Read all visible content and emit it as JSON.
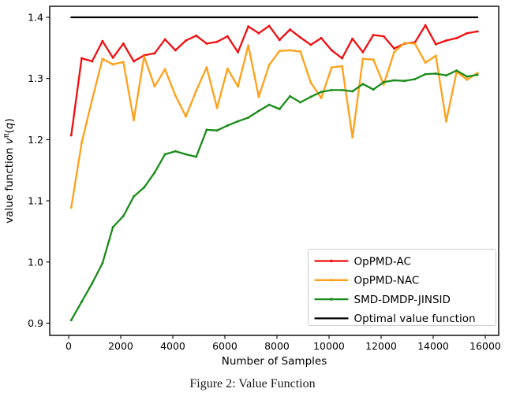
{
  "figure": {
    "caption": "Figure 2: Value Function"
  },
  "chart_data": {
    "type": "line",
    "title": "",
    "xlabel": "Number of Samples",
    "ylabel": {
      "text": "value function vπ(q)",
      "prefix": "value function ",
      "var": "v",
      "sup": "π",
      "open": "(",
      "arg": "q",
      "close": ")"
    },
    "xlim": [
      -727,
      16515
    ],
    "ylim": [
      0.88,
      1.418
    ],
    "x_tick_values": [
      0,
      2000,
      4000,
      6000,
      8000,
      10000,
      12000,
      14000,
      16000
    ],
    "x_tick_labels": [
      "0",
      "2000",
      "4000",
      "6000",
      "8000",
      "10000",
      "12000",
      "14000",
      "16000"
    ],
    "y_tick_values": [
      0.9,
      1.0,
      1.1,
      1.2,
      1.3,
      1.4
    ],
    "y_tick_labels": [
      "0.9",
      "1.0",
      "1.1",
      "1.2",
      "1.3",
      "1.4"
    ],
    "grid": false,
    "legend_position": "lower right",
    "x": [
      100,
      500,
      900,
      1300,
      1700,
      2100,
      2500,
      2900,
      3300,
      3700,
      4100,
      4500,
      4900,
      5300,
      5700,
      6100,
      6500,
      6900,
      7300,
      7700,
      8100,
      8500,
      8900,
      9300,
      9700,
      10100,
      10500,
      10900,
      11300,
      11700,
      12100,
      12500,
      12900,
      13300,
      13700,
      14100,
      14500,
      14900,
      15300,
      15700
    ],
    "series": [
      {
        "name": "OpPMD-AC",
        "color": "#f10e10",
        "marker": true,
        "values": [
          1.207,
          1.333,
          1.328,
          1.361,
          1.334,
          1.357,
          1.328,
          1.338,
          1.341,
          1.364,
          1.346,
          1.362,
          1.37,
          1.357,
          1.36,
          1.369,
          1.343,
          1.385,
          1.374,
          1.386,
          1.363,
          1.38,
          1.367,
          1.355,
          1.366,
          1.346,
          1.333,
          1.365,
          1.343,
          1.371,
          1.369,
          1.349,
          1.357,
          1.359,
          1.387,
          1.356,
          1.362,
          1.366,
          1.374,
          1.377
        ]
      },
      {
        "name": "OpPMD-NAC",
        "color": "#ffa018",
        "marker": true,
        "values": [
          1.089,
          1.195,
          1.265,
          1.332,
          1.323,
          1.327,
          1.232,
          1.336,
          1.287,
          1.315,
          1.272,
          1.238,
          1.28,
          1.318,
          1.252,
          1.316,
          1.287,
          1.354,
          1.27,
          1.322,
          1.345,
          1.346,
          1.344,
          1.293,
          1.268,
          1.318,
          1.32,
          1.204,
          1.332,
          1.331,
          1.29,
          1.343,
          1.358,
          1.357,
          1.326,
          1.337,
          1.23,
          1.311,
          1.298,
          1.309
        ]
      },
      {
        "name": "SMD-DMDP-JINSID",
        "color": "#1a8c1a",
        "marker": true,
        "values": [
          0.905,
          0.935,
          0.965,
          0.998,
          1.057,
          1.075,
          1.107,
          1.122,
          1.146,
          1.176,
          1.181,
          1.176,
          1.172,
          1.216,
          1.215,
          1.223,
          1.23,
          1.236,
          1.247,
          1.257,
          1.25,
          1.271,
          1.261,
          1.27,
          1.278,
          1.281,
          1.281,
          1.279,
          1.291,
          1.282,
          1.294,
          1.297,
          1.296,
          1.299,
          1.307,
          1.308,
          1.305,
          1.313,
          1.303,
          1.306
        ]
      },
      {
        "name": "Optimal value function",
        "color": "#000000",
        "marker": false,
        "constant": 1.4
      }
    ]
  }
}
